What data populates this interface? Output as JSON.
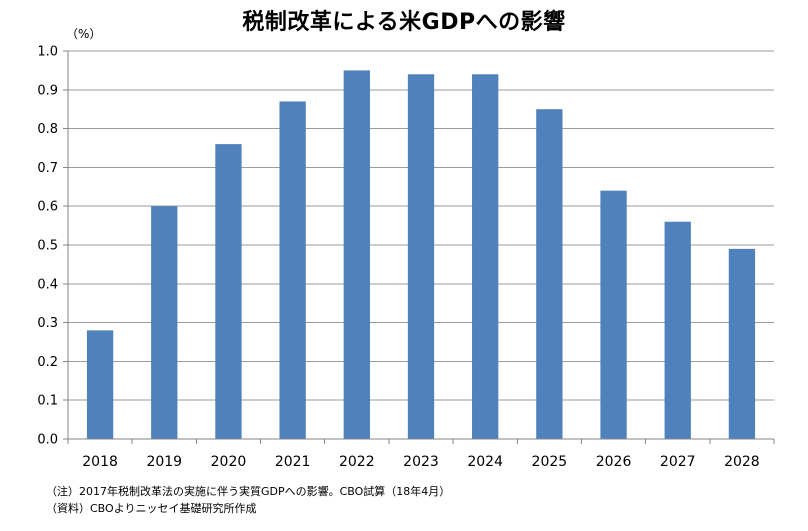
{
  "chart_data": {
    "type": "bar",
    "title": "税制改革による米GDPへの影響",
    "unit_label": "（%）",
    "categories": [
      "2018",
      "2019",
      "2020",
      "2021",
      "2022",
      "2023",
      "2024",
      "2025",
      "2026",
      "2027",
      "2028"
    ],
    "series": [
      {
        "values": [
          0.28,
          0.6,
          0.76,
          0.87,
          0.95,
          0.94,
          0.94,
          0.85,
          0.64,
          0.56,
          0.49
        ],
        "color": "#4f81bd"
      }
    ],
    "ylim": [
      0,
      1.0
    ],
    "yticks": [
      "0.0",
      "0.1",
      "0.2",
      "0.3",
      "0.4",
      "0.5",
      "0.6",
      "0.7",
      "0.8",
      "0.9",
      "1.0"
    ],
    "grid": true,
    "legend": "none"
  },
  "notes": {
    "note": "（注）2017年税制改革法の実施に伴う実質GDPへの影響。CBO試算（18年4月）",
    "source": "（資料）CBOよりニッセイ基礎研究所作成"
  }
}
